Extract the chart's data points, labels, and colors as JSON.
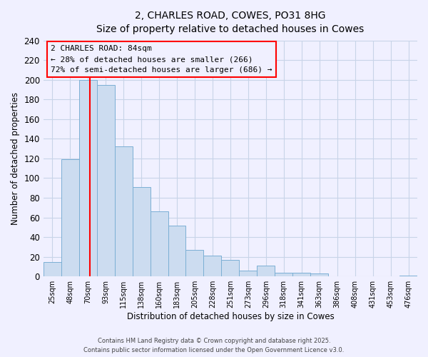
{
  "title": "2, CHARLES ROAD, COWES, PO31 8HG",
  "subtitle": "Size of property relative to detached houses in Cowes",
  "xlabel": "Distribution of detached houses by size in Cowes",
  "ylabel": "Number of detached properties",
  "bar_labels": [
    "25sqm",
    "48sqm",
    "70sqm",
    "93sqm",
    "115sqm",
    "138sqm",
    "160sqm",
    "183sqm",
    "205sqm",
    "228sqm",
    "251sqm",
    "273sqm",
    "296sqm",
    "318sqm",
    "341sqm",
    "363sqm",
    "386sqm",
    "408sqm",
    "431sqm",
    "453sqm",
    "476sqm"
  ],
  "bar_values": [
    15,
    119,
    200,
    195,
    132,
    91,
    66,
    52,
    27,
    21,
    17,
    6,
    11,
    4,
    4,
    3,
    0,
    0,
    0,
    0,
    1
  ],
  "bar_color": "#ccdcf0",
  "bar_edge_color": "#7bafd4",
  "ylim": [
    0,
    240
  ],
  "yticks": [
    0,
    20,
    40,
    60,
    80,
    100,
    120,
    140,
    160,
    180,
    200,
    220,
    240
  ],
  "prop_sqm": 84,
  "bin_edges": [
    25,
    48,
    70,
    93,
    115,
    138,
    160,
    183,
    205,
    228,
    251,
    273,
    296,
    318,
    341,
    363,
    386,
    408,
    431,
    453,
    476,
    499
  ],
  "annotation_title": "2 CHARLES ROAD: 84sqm",
  "annotation_line1": "← 28% of detached houses are smaller (266)",
  "annotation_line2": "72% of semi-detached houses are larger (686) →",
  "footer_line1": "Contains HM Land Registry data © Crown copyright and database right 2025.",
  "footer_line2": "Contains public sector information licensed under the Open Government Licence v3.0.",
  "background_color": "#f0f0ff",
  "grid_color": "#c8d4e8",
  "ann_box_color": "#f0f0ff"
}
